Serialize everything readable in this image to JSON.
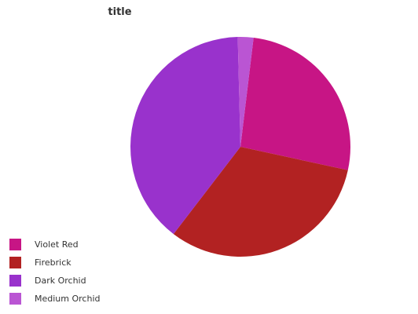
{
  "chart_data": {
    "type": "pie",
    "title": "title",
    "series": [
      {
        "name": "Violet Red",
        "value": 26.5,
        "color": "#c71585"
      },
      {
        "name": "Firebrick",
        "value": 32.0,
        "color": "#b22222"
      },
      {
        "name": "Dark Orchid",
        "value": 39.2,
        "color": "#9932cc"
      },
      {
        "name": "Medium Orchid",
        "value": 2.3,
        "color": "#ba55d3"
      }
    ],
    "legend_position": "bottom-left"
  }
}
